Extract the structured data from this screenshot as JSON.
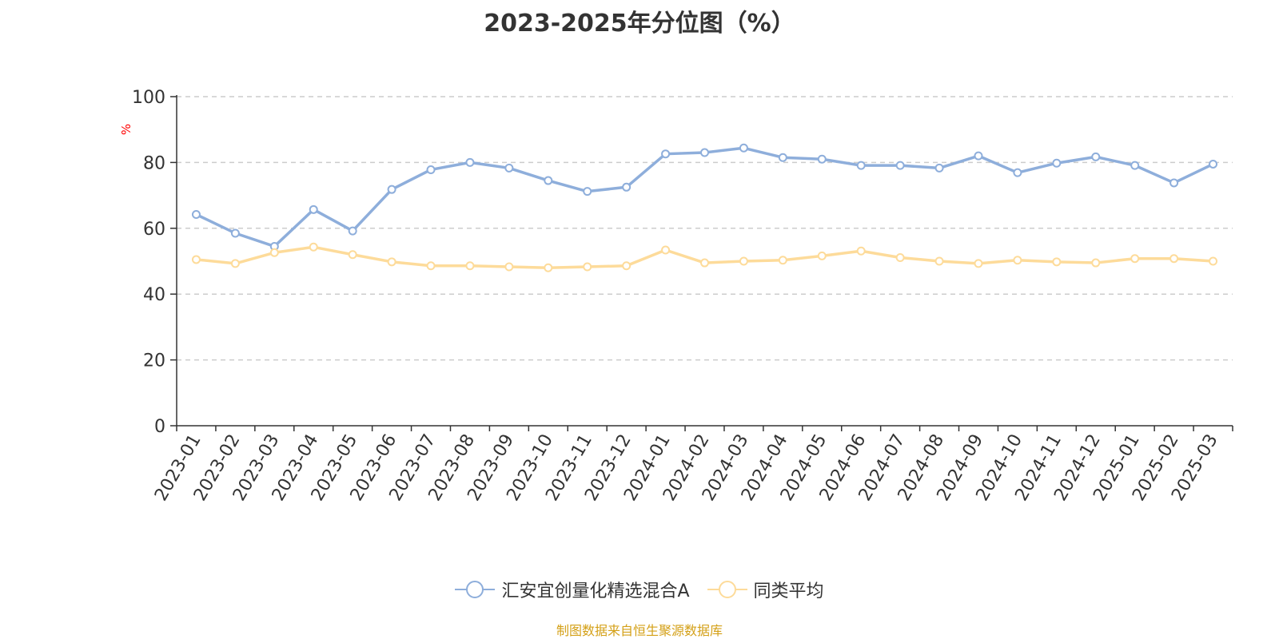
{
  "title": "2023-2025年分位图（%）",
  "source": "制图数据来自恒生聚源数据库",
  "colors": {
    "series_fund": "#8eaedb",
    "series_avg": "#fddb9a",
    "axis": "#333333",
    "grid": "#cccccc",
    "unit_label": "#ff0000",
    "source_text": "#d4a017"
  },
  "chart_data": {
    "type": "line",
    "title": "2023-2025年分位图（%）",
    "ylabel": "%",
    "ylim": [
      0,
      100
    ],
    "yticks": [
      0,
      20,
      40,
      60,
      80,
      100
    ],
    "grid": true,
    "legend_position": "bottom",
    "categories": [
      "2023-01",
      "2023-02",
      "2023-03",
      "2023-04",
      "2023-05",
      "2023-06",
      "2023-07",
      "2023-08",
      "2023-09",
      "2023-10",
      "2023-11",
      "2023-12",
      "2024-01",
      "2024-02",
      "2024-03",
      "2024-04",
      "2024-05",
      "2024-06",
      "2024-07",
      "2024-08",
      "2024-09",
      "2024-10",
      "2024-11",
      "2024-12",
      "2025-01",
      "2025-02",
      "2025-03"
    ],
    "series": [
      {
        "name": "汇安宜创量化精选混合A",
        "values": [
          64.2,
          58.5,
          54.5,
          65.7,
          59.2,
          71.8,
          77.8,
          80.0,
          78.3,
          74.5,
          71.2,
          72.5,
          82.6,
          83.0,
          84.4,
          81.5,
          81.0,
          79.1,
          79.1,
          78.3,
          82.0,
          76.9,
          79.8,
          81.7,
          79.1,
          73.8,
          79.5
        ],
        "color": "#8eaedb"
      },
      {
        "name": "同类平均",
        "values": [
          50.5,
          49.3,
          52.6,
          54.3,
          52.0,
          49.8,
          48.6,
          48.6,
          48.3,
          48.0,
          48.3,
          48.6,
          53.4,
          49.5,
          50.0,
          50.3,
          51.6,
          53.1,
          51.1,
          50.0,
          49.3,
          50.3,
          49.8,
          49.5,
          50.8,
          50.8,
          50.0
        ],
        "color": "#fddb9a"
      }
    ]
  }
}
